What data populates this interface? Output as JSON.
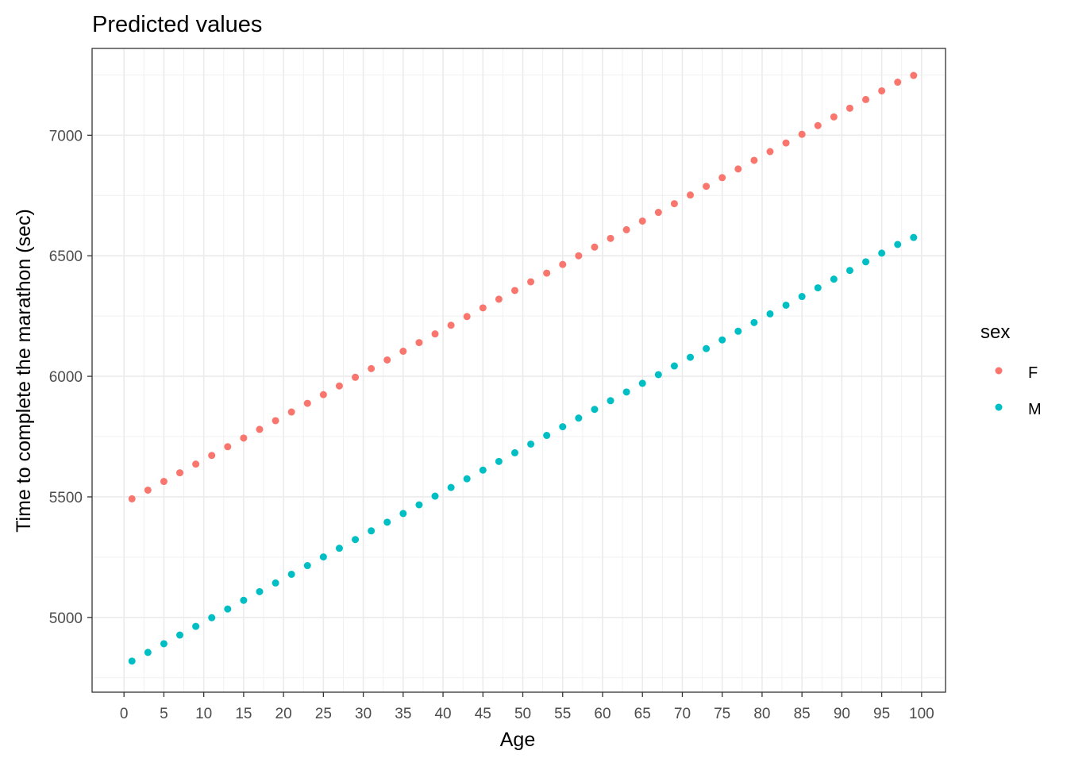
{
  "chart_data": {
    "type": "scatter",
    "title": "Predicted values",
    "xlabel": "Age",
    "ylabel": "Time to complete the marathon (sec)",
    "xlim": [
      -4,
      103
    ],
    "ylim": [
      4690,
      7360
    ],
    "x_ticks": [
      "0",
      "5",
      "10",
      "15",
      "20",
      "25",
      "30",
      "35",
      "40",
      "45",
      "50",
      "55",
      "60",
      "65",
      "70",
      "75",
      "80",
      "85",
      "90",
      "95",
      "100"
    ],
    "y_ticks": [
      "5000",
      "5500",
      "6000",
      "6500",
      "7000"
    ],
    "grid": true,
    "legend": {
      "title": "sex",
      "position": "right"
    },
    "x": [
      1,
      3,
      5,
      7,
      9,
      11,
      13,
      15,
      17,
      19,
      21,
      23,
      25,
      27,
      29,
      31,
      33,
      35,
      37,
      39,
      41,
      43,
      45,
      47,
      49,
      51,
      53,
      55,
      57,
      59,
      61,
      63,
      65,
      67,
      69,
      71,
      73,
      75,
      77,
      79,
      81,
      83,
      85,
      87,
      89,
      91,
      93,
      95,
      97,
      99
    ],
    "series": [
      {
        "name": "F",
        "color": "#F8766D",
        "values": [
          5492,
          5528,
          5564,
          5600,
          5636,
          5672,
          5708,
          5744,
          5780,
          5816,
          5852,
          5888,
          5924,
          5960,
          5996,
          6032,
          6068,
          6104,
          6140,
          6176,
          6212,
          6248,
          6284,
          6320,
          6356,
          6392,
          6428,
          6464,
          6500,
          6536,
          6572,
          6608,
          6644,
          6680,
          6716,
          6752,
          6788,
          6824,
          6860,
          6896,
          6932,
          6968,
          7004,
          7040,
          7076,
          7112,
          7148,
          7184,
          7220,
          7248
        ]
      },
      {
        "name": "M",
        "color": "#00BFC4",
        "values": [
          4819,
          4855,
          4891,
          4927,
          4963,
          4999,
          5035,
          5071,
          5107,
          5143,
          5179,
          5215,
          5251,
          5287,
          5323,
          5359,
          5395,
          5431,
          5467,
          5503,
          5539,
          5575,
          5611,
          5647,
          5683,
          5719,
          5755,
          5791,
          5827,
          5863,
          5899,
          5935,
          5971,
          6007,
          6043,
          6079,
          6115,
          6151,
          6187,
          6223,
          6259,
          6295,
          6331,
          6367,
          6403,
          6439,
          6475,
          6511,
          6547,
          6576
        ]
      }
    ]
  }
}
